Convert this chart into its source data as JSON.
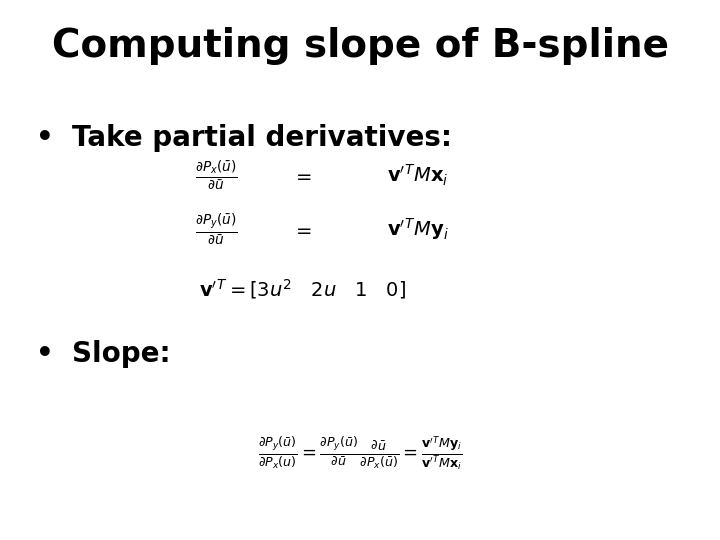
{
  "title": "Computing slope of B-spline",
  "title_fontsize": 28,
  "title_fontweight": "bold",
  "bullet1": "Take partial derivatives:",
  "bullet2": "Slope:",
  "bullet_fontsize": 20,
  "bullet_fontweight": "bold",
  "bg_color": "#ffffff",
  "text_color": "#000000",
  "eq_fontsize": 14,
  "slope_fontsize": 13
}
